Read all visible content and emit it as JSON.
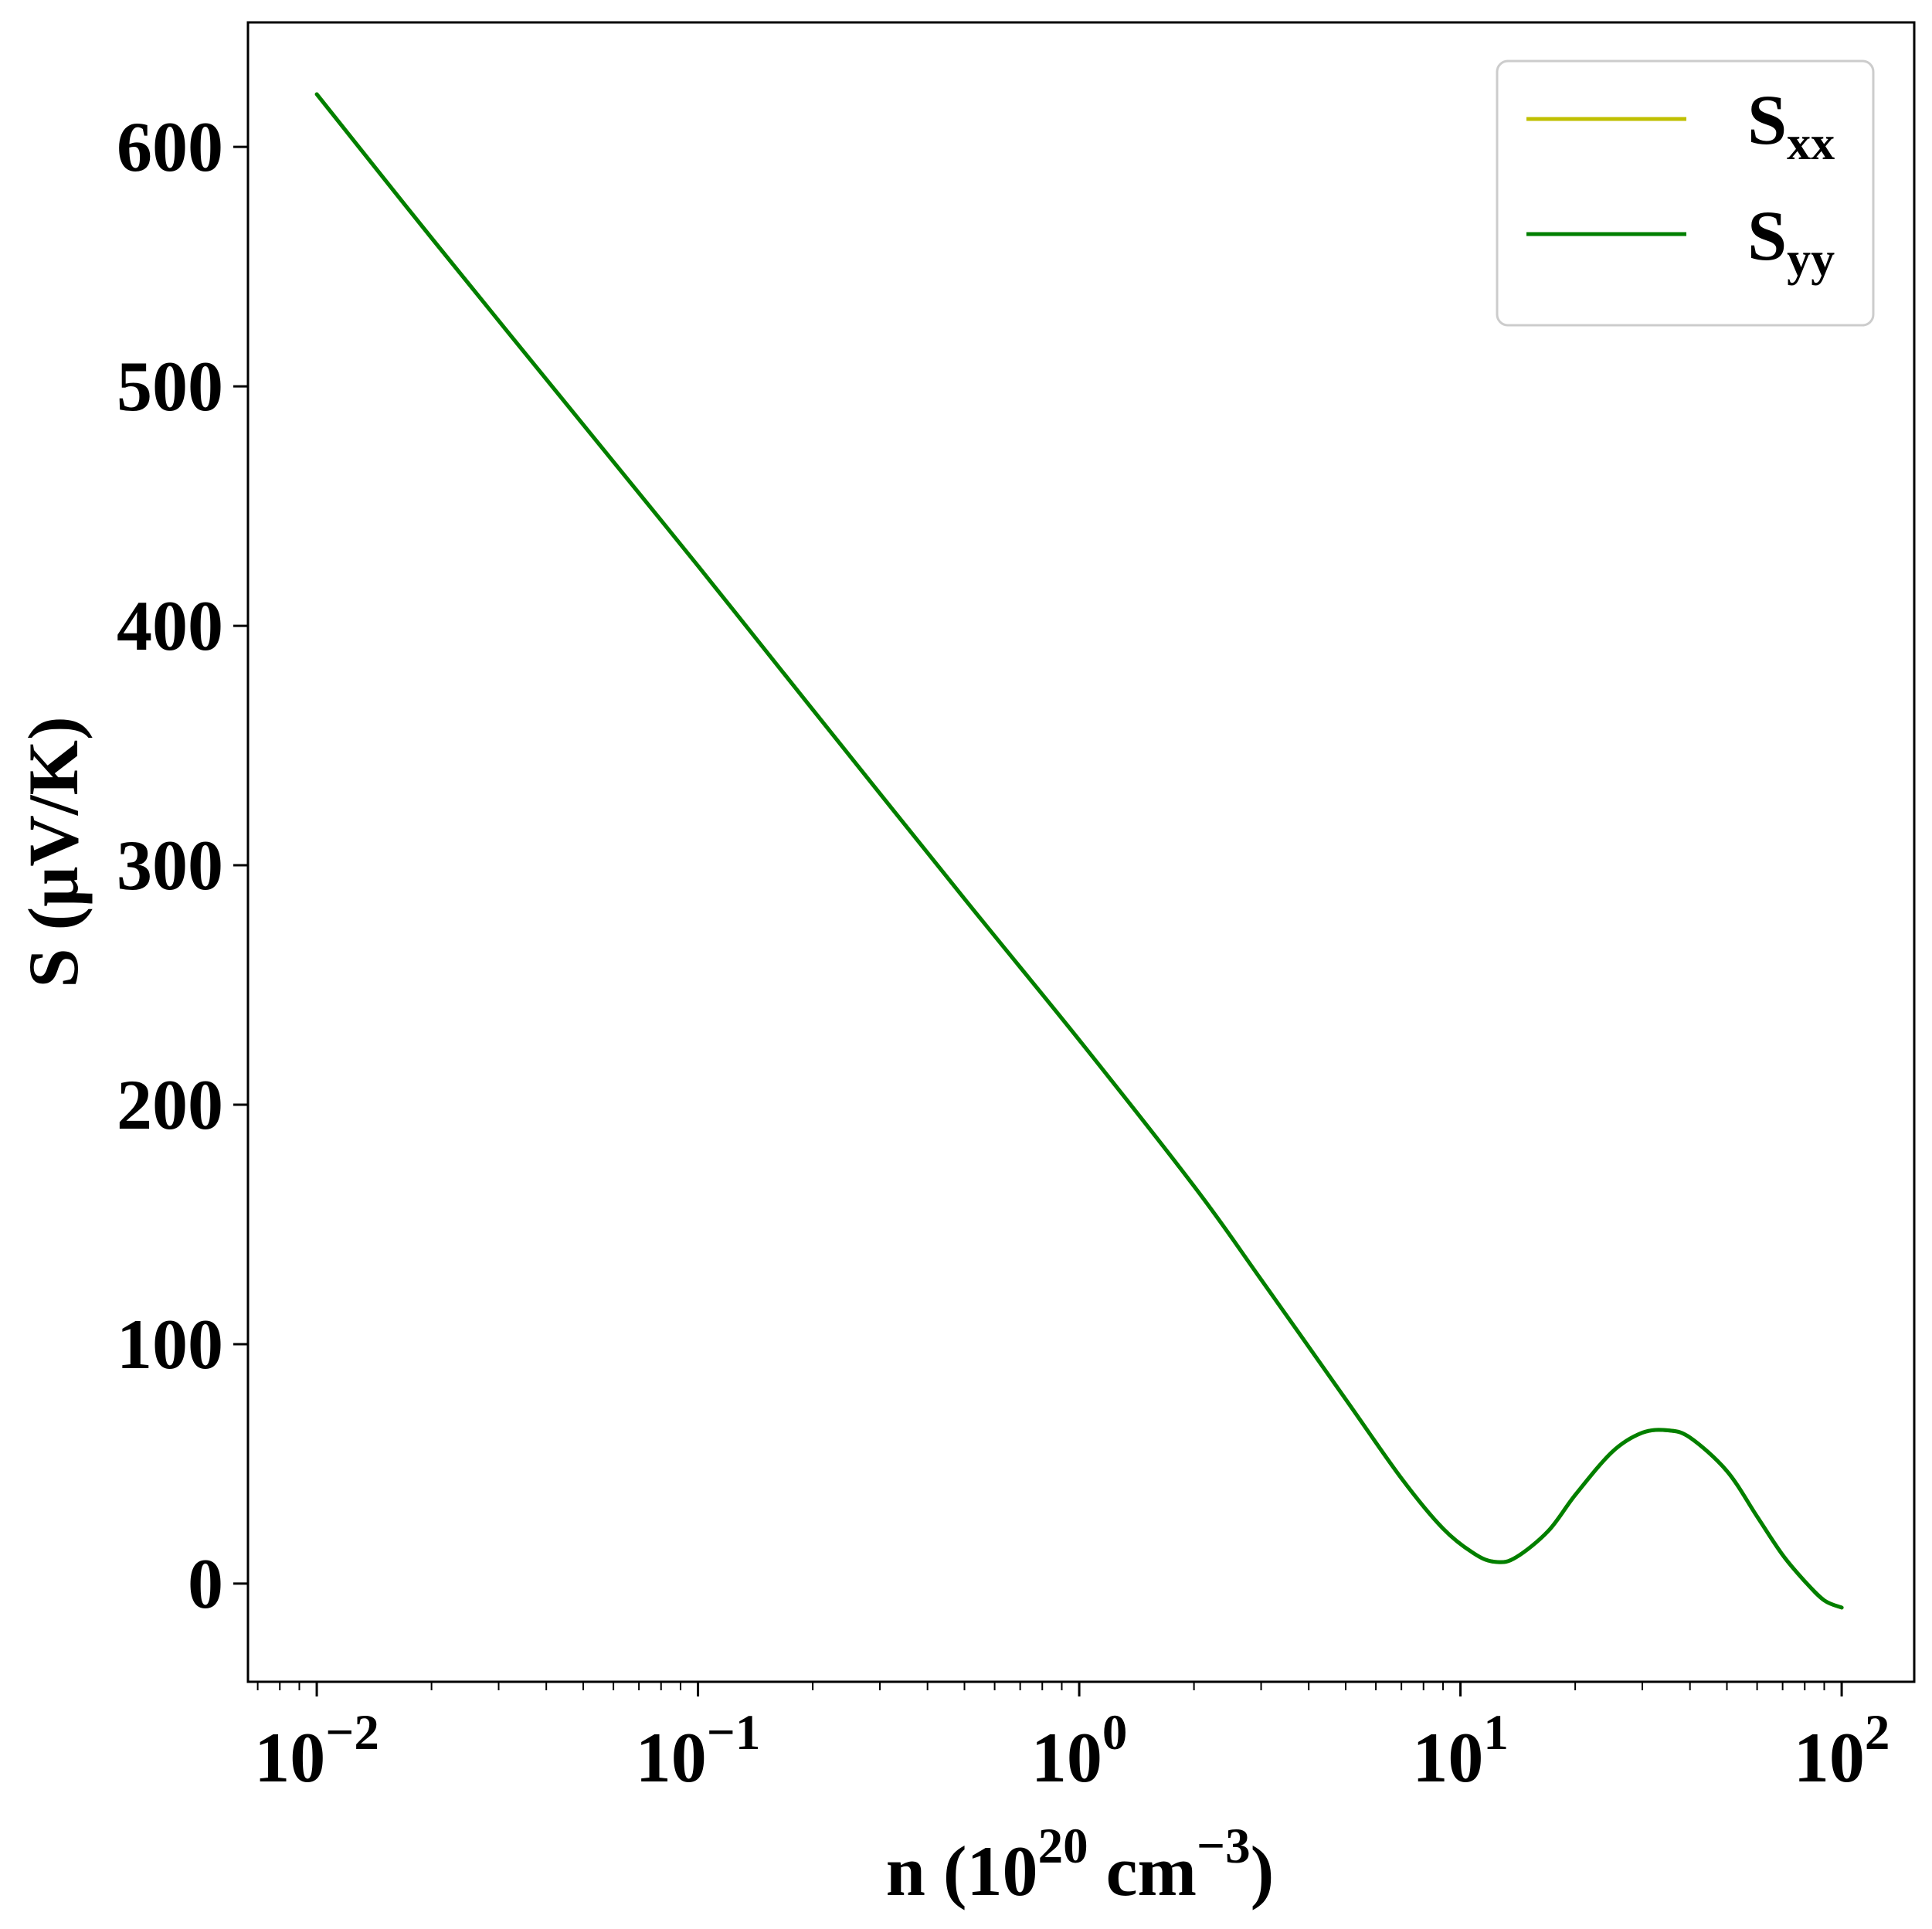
{
  "chart_data": {
    "type": "line",
    "title": "",
    "xlabel": {
      "prefix": "n (10",
      "exp": "20",
      "middle": " cm",
      "exp2": "−3",
      "suffix": ")"
    },
    "ylabel": "S (μV/K)",
    "xscale": "log",
    "xlim": [
      0.0066,
      155
    ],
    "ylim": [
      -41,
      652
    ],
    "x_ticks": [
      {
        "base": "10",
        "exp": "−2",
        "value": 0.01
      },
      {
        "base": "10",
        "exp": "−1",
        "value": 0.1
      },
      {
        "base": "10",
        "exp": "0",
        "value": 1
      },
      {
        "base": "10",
        "exp": "1",
        "value": 10
      },
      {
        "base": "10",
        "exp": "2",
        "value": 100
      }
    ],
    "y_ticks": [
      "0",
      "100",
      "200",
      "300",
      "400",
      "500",
      "600"
    ],
    "y_tick_values": [
      0,
      100,
      200,
      300,
      400,
      500,
      600
    ],
    "grid": false,
    "legend_position": "top-right",
    "series": [
      {
        "name": "S",
        "subscript": "xx",
        "color": "#bfbf00",
        "x": [
          0.01,
          0.02,
          0.05,
          0.1,
          0.2,
          0.5,
          1,
          2,
          3,
          5,
          7,
          9,
          11,
          12.5,
          14,
          17,
          20,
          25,
          30,
          35,
          40,
          50,
          60,
          70,
          80,
          90,
          100
        ],
        "y": [
          622,
          562,
          484,
          425,
          365,
          286,
          227,
          166,
          127,
          77,
          44,
          23,
          12,
          9,
          11,
          22,
          37,
          55,
          63,
          64,
          61,
          47,
          28,
          12,
          1,
          -7,
          -10
        ]
      },
      {
        "name": "S",
        "subscript": "yy",
        "color": "#007f00",
        "x": [
          0.01,
          0.02,
          0.05,
          0.1,
          0.2,
          0.5,
          1,
          2,
          3,
          5,
          7,
          9,
          11,
          12.5,
          14,
          17,
          20,
          25,
          30,
          35,
          40,
          50,
          60,
          70,
          80,
          90,
          100
        ],
        "y": [
          622,
          562,
          484,
          425,
          365,
          286,
          227,
          166,
          127,
          77,
          44,
          23,
          12,
          9,
          11,
          22,
          37,
          55,
          63,
          64,
          61,
          47,
          28,
          12,
          1,
          -7,
          -10
        ]
      }
    ]
  }
}
